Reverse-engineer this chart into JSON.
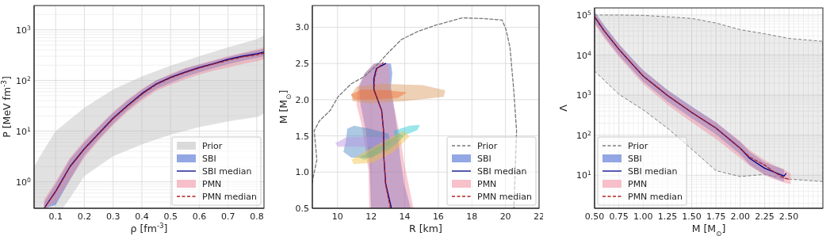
{
  "chart_data": [
    {
      "type": "line",
      "xlabel": "ρ [fm$^{-3}$]",
      "ylabel": "P [MeV fm$^{-3}$]",
      "log": "y",
      "grid": true,
      "legend": "bottom right",
      "xlim": [
        0.025,
        0.825
      ],
      "ylim": [
        0.3,
        3000
      ],
      "xticks": [
        0.1,
        0.2,
        0.3,
        0.4,
        0.5,
        0.6,
        0.7,
        0.8
      ],
      "yticks": [
        {
          "value": 0.3,
          "label": null
        },
        {
          "value": 0.4,
          "label": null
        },
        {
          "value": 0.5,
          "label": null
        },
        {
          "value": 0.6,
          "label": null
        },
        {
          "value": 0.7,
          "label": null
        },
        {
          "value": 0.8,
          "label": null
        },
        {
          "value": 0.9,
          "label": null
        },
        {
          "value": 1,
          "label": "10$^{0}$"
        },
        {
          "value": 2,
          "label": null
        },
        {
          "value": 3,
          "label": null
        },
        {
          "value": 4,
          "label": null
        },
        {
          "value": 5,
          "label": null
        },
        {
          "value": 6,
          "label": null
        },
        {
          "value": 7,
          "label": null
        },
        {
          "value": 8,
          "label": null
        },
        {
          "value": 9,
          "label": null
        },
        {
          "value": 10,
          "label": "10$^{1}$"
        },
        {
          "value": 20,
          "label": null
        },
        {
          "value": 30,
          "label": null
        },
        {
          "value": 40,
          "label": null
        },
        {
          "value": 50,
          "label": null
        },
        {
          "value": 60,
          "label": null
        },
        {
          "value": 70,
          "label": null
        },
        {
          "value": 80,
          "label": null
        },
        {
          "value": 90,
          "label": null
        },
        {
          "value": 100,
          "label": "10$^{2}$"
        },
        {
          "value": 200,
          "label": null
        },
        {
          "value": 300,
          "label": null
        },
        {
          "value": 400,
          "label": null
        },
        {
          "value": 500,
          "label": null
        },
        {
          "value": 600,
          "label": null
        },
        {
          "value": 700,
          "label": null
        },
        {
          "value": 800,
          "label": null
        },
        {
          "value": 900,
          "label": null
        },
        {
          "value": 1000,
          "label": "10$^{3}$"
        },
        {
          "value": 2000,
          "label": null
        },
        {
          "value": 3000,
          "label": null
        }
      ],
      "series": [
        {
          "name": "Prior",
          "type": "area",
          "color": "#bdbdbd",
          "x": [
            0.025,
            0.05,
            0.1,
            0.125,
            0.15,
            0.2,
            0.3,
            0.4,
            0.5,
            0.6,
            0.7,
            0.8,
            0.825,
            0.825,
            0.8,
            0.7,
            0.6,
            0.5,
            0.4,
            0.3,
            0.2,
            0.15,
            0.125,
            0.1,
            0.05,
            0.025
          ],
          "values": [
            2,
            3.5,
            10,
            13,
            17,
            29,
            66,
            120,
            195,
            300,
            450,
            650,
            780,
            22,
            19,
            15.5,
            12,
            8.5,
            5.5,
            3.2,
            1.3,
            0.48,
            0.3,
            0.3,
            0.3,
            0.3
          ]
        },
        {
          "name": "SBI",
          "type": "area",
          "color": "#3a5fcd",
          "x": [
            0.06,
            0.1,
            0.15,
            0.2,
            0.25,
            0.3,
            0.35,
            0.4,
            0.45,
            0.5,
            0.55,
            0.6,
            0.65,
            0.7,
            0.75,
            0.8,
            0.825,
            0.825,
            0.8,
            0.75,
            0.7,
            0.65,
            0.6,
            0.55,
            0.5,
            0.45,
            0.4,
            0.35,
            0.3,
            0.25,
            0.2,
            0.15,
            0.1,
            0.06
          ],
          "values": [
            0.4,
            0.9,
            2.8,
            6,
            12,
            23,
            40,
            65,
            100,
            130,
            170,
            205,
            245,
            290,
            340,
            390,
            420,
            300,
            280,
            245,
            210,
            175,
            145,
            118,
            90,
            68,
            44,
            26,
            14,
            7,
            3.3,
            1.1,
            0.35,
            0.3
          ]
        },
        {
          "name": "SBI median",
          "color": "#00008b",
          "line_style": "solid",
          "x": [
            0.06,
            0.1,
            0.15,
            0.2,
            0.25,
            0.3,
            0.35,
            0.4,
            0.45,
            0.5,
            0.55,
            0.6,
            0.65,
            0.7,
            0.75,
            0.8,
            0.825
          ],
          "values": [
            0.3,
            0.65,
            2.0,
            4.5,
            9,
            18,
            32,
            55,
            85,
            115,
            145,
            180,
            215,
            260,
            300,
            335,
            360
          ]
        },
        {
          "name": "PMN",
          "type": "area",
          "color": "#f08ca0",
          "x": [
            0.06,
            0.1,
            0.15,
            0.2,
            0.25,
            0.3,
            0.35,
            0.4,
            0.45,
            0.5,
            0.55,
            0.6,
            0.65,
            0.7,
            0.75,
            0.8,
            0.825,
            0.825,
            0.8,
            0.75,
            0.7,
            0.65,
            0.6,
            0.55,
            0.5,
            0.45,
            0.4,
            0.35,
            0.3,
            0.25,
            0.2,
            0.15,
            0.1,
            0.06
          ],
          "values": [
            0.45,
            1.0,
            3.0,
            6.5,
            12.5,
            24,
            42,
            68,
            100,
            135,
            175,
            210,
            250,
            300,
            350,
            410,
            450,
            260,
            240,
            210,
            180,
            155,
            130,
            105,
            82,
            62,
            40,
            24,
            13,
            6.5,
            3,
            1.1,
            0.4,
            0.3
          ]
        },
        {
          "name": "PMN median",
          "color": "#b22222",
          "line_style": "dashed",
          "x": [
            0.06,
            0.1,
            0.15,
            0.2,
            0.25,
            0.3,
            0.35,
            0.4,
            0.45,
            0.5,
            0.55,
            0.6,
            0.65,
            0.7,
            0.75,
            0.8,
            0.825
          ],
          "values": [
            0.3,
            0.63,
            1.95,
            4.4,
            8.8,
            17.5,
            31,
            53,
            83,
            112,
            142,
            176,
            210,
            250,
            290,
            320,
            345
          ]
        }
      ]
    },
    {
      "type": "line",
      "xlabel": "R [km]",
      "ylabel": "M [M$_{⊙}$]",
      "grid": true,
      "legend": "bottom right",
      "xlim": [
        8.5,
        22
      ],
      "ylim": [
        0.5,
        3.3
      ],
      "xticks": [
        10,
        12,
        14,
        16,
        18,
        20,
        22
      ],
      "yticks": [
        {
          "value": 0.5,
          "label": "0.5"
        },
        {
          "value": 1,
          "label": "1.0"
        },
        {
          "value": 1.5,
          "label": "1.5"
        },
        {
          "value": 2,
          "label": "2.0"
        },
        {
          "value": 2.5,
          "label": "2.5"
        },
        {
          "value": 3,
          "label": "3.0"
        }
      ],
      "series": [
        {
          "name": "Prior",
          "color": "#777777",
          "line_style": "dashed",
          "x": [
            8.5,
            8.54,
            8.77,
            8.61,
            8.93,
            9.56,
            10.03,
            10.82,
            11.6,
            12.4,
            13.02,
            13.8,
            14.76,
            15.86,
            17.43,
            18.69,
            19.8,
            20.03,
            20.27,
            20.5,
            20.66,
            20.58,
            20.5
          ],
          "values": [
            0.85,
            0.92,
            1.17,
            1.57,
            1.71,
            1.85,
            2.04,
            2.22,
            2.32,
            2.49,
            2.65,
            2.83,
            2.94,
            3.03,
            3.13,
            3.12,
            3.1,
            2.97,
            2.72,
            2.11,
            1.57,
            1.02,
            0.5
          ]
        },
        {
          "name": "SBI",
          "type": "area",
          "color": "#3a5fcd",
          "x": [
            12.0,
            11.92,
            11.69,
            11.37,
            11.29,
            11.6,
            12.16,
            12.4,
            13.18,
            13.26,
            13.18,
            13.34,
            13.57,
            13.73,
            13.97,
            14.36
          ],
          "values": [
            0.5,
            1.02,
            1.57,
            1.93,
            2.18,
            2.36,
            2.49,
            2.51,
            2.5,
            2.36,
            2.18,
            1.93,
            1.57,
            1.2,
            0.84,
            0.5
          ]
        },
        {
          "name": "SBI median",
          "color": "#00008b",
          "line_style": "solid",
          "x": [
            13.21,
            12.87,
            12.76,
            12.74,
            12.63,
            12.39,
            12.16,
            12.16,
            12.31,
            12.63,
            12.87
          ],
          "values": [
            0.5,
            0.84,
            1.2,
            1.57,
            1.85,
            2.0,
            2.14,
            2.29,
            2.43,
            2.47,
            2.5
          ]
        },
        {
          "name": "PMN",
          "type": "area",
          "color": "#f08ca0",
          "x": [
            11.89,
            11.84,
            11.45,
            11.13,
            11.21,
            11.69,
            12.16,
            13.02,
            13.1,
            13.1,
            13.42,
            13.73,
            13.97,
            14.28,
            14.52
          ],
          "values": [
            0.5,
            1.02,
            1.64,
            1.93,
            2.18,
            2.38,
            2.5,
            2.5,
            2.32,
            2.14,
            1.85,
            1.49,
            1.13,
            0.77,
            0.5
          ]
        },
        {
          "name": "PMN median",
          "color": "#b22222",
          "line_style": "dashed",
          "x": [
            13.15,
            12.85,
            12.76,
            12.74,
            12.62,
            12.38,
            12.18,
            12.2,
            12.35,
            12.6,
            12.71
          ],
          "values": [
            0.5,
            0.84,
            1.2,
            1.57,
            1.85,
            2.0,
            2.14,
            2.29,
            2.43,
            2.48,
            2.51
          ]
        },
        {
          "type": "area",
          "color": "#d9965a",
          "x": [
            10.82,
            11.13,
            12.71,
            15.07,
            16.41,
            16.33,
            13.97,
            11.92,
            10.9
          ],
          "values": [
            2.07,
            2.18,
            2.22,
            2.2,
            2.13,
            2.04,
            1.98,
            1.95,
            1.98
          ]
        },
        {
          "type": "area",
          "color": "#f06a30",
          "x": [
            10.79,
            11.45,
            13.02,
            14.13,
            13.57,
            11.92,
            11.0
          ],
          "values": [
            2.07,
            2.14,
            2.13,
            2.1,
            2.02,
            2.0,
            2.0
          ]
        },
        {
          "type": "area",
          "color": "#4a86c0",
          "x": [
            10.58,
            10.98,
            11.92,
            13.02,
            13.18,
            12.71,
            12.08,
            10.82,
            10.35,
            10.5
          ],
          "values": [
            1.6,
            1.64,
            1.6,
            1.53,
            1.4,
            1.31,
            1.2,
            1.2,
            1.28,
            1.43
          ]
        },
        {
          "type": "area",
          "color": "#b890e0",
          "x": [
            9.87,
            10.5,
            11.92,
            13.57,
            13.5,
            11.92,
            10.03
          ],
          "values": [
            1.4,
            1.48,
            1.49,
            1.46,
            1.37,
            1.35,
            1.35
          ]
        },
        {
          "type": "area",
          "color": "#20c8d0",
          "x": [
            13.34,
            14.28,
            14.91,
            14.76,
            13.81,
            13.42
          ],
          "values": [
            1.57,
            1.64,
            1.65,
            1.58,
            1.49,
            1.48
          ]
        },
        {
          "type": "area",
          "color": "#f0c040",
          "x": [
            10.82,
            11.6,
            13.02,
            13.97,
            14.28,
            13.34,
            12.08,
            10.98
          ],
          "values": [
            1.17,
            1.28,
            1.46,
            1.57,
            1.49,
            1.28,
            1.13,
            1.11
          ]
        },
        {
          "type": "area",
          "color": "#7ab87a",
          "x": [
            11.29,
            12.4,
            13.65,
            13.97,
            13.02,
            11.6
          ],
          "values": [
            1.2,
            1.35,
            1.53,
            1.49,
            1.3,
            1.17
          ]
        }
      ]
    },
    {
      "type": "line",
      "xlabel": "M [M$_{⊙}$]",
      "ylabel": "Λ",
      "log": "y",
      "grid": true,
      "legend": "bottom left",
      "xlim": [
        0.5,
        2.85
      ],
      "ylim": [
        1.5,
        150000
      ],
      "xticks": [
        {
          "value": 0.5,
          "label": "0.50"
        },
        {
          "value": 0.55,
          "label": null
        },
        {
          "value": 0.6,
          "label": null
        },
        {
          "value": 0.65,
          "label": null
        },
        {
          "value": 0.7,
          "label": null
        },
        {
          "value": 0.75,
          "label": "0.75"
        },
        {
          "value": 0.8,
          "label": null
        },
        {
          "value": 0.85,
          "label": null
        },
        {
          "value": 0.9,
          "label": null
        },
        {
          "value": 0.95,
          "label": null
        },
        {
          "value": 1,
          "label": "1.00"
        },
        {
          "value": 1.05,
          "label": null
        },
        {
          "value": 1.1,
          "label": null
        },
        {
          "value": 1.15,
          "label": null
        },
        {
          "value": 1.2,
          "label": null
        },
        {
          "value": 1.25,
          "label": "1.25"
        },
        {
          "value": 1.3,
          "label": null
        },
        {
          "value": 1.35,
          "label": null
        },
        {
          "value": 1.4,
          "label": null
        },
        {
          "value": 1.45,
          "label": null
        },
        {
          "value": 1.5,
          "label": "1.50"
        },
        {
          "value": 1.55,
          "label": null
        },
        {
          "value": 1.6,
          "label": null
        },
        {
          "value": 1.65,
          "label": null
        },
        {
          "value": 1.7,
          "label": null
        },
        {
          "value": 1.75,
          "label": "1.75"
        },
        {
          "value": 1.8,
          "label": null
        },
        {
          "value": 1.85,
          "label": null
        },
        {
          "value": 1.9,
          "label": null
        },
        {
          "value": 1.95,
          "label": null
        },
        {
          "value": 2,
          "label": "2.00"
        },
        {
          "value": 2.05,
          "label": null
        },
        {
          "value": 2.1,
          "label": null
        },
        {
          "value": 2.15,
          "label": null
        },
        {
          "value": 2.2,
          "label": null
        },
        {
          "value": 2.25,
          "label": "2.25"
        },
        {
          "value": 2.3,
          "label": null
        },
        {
          "value": 2.35,
          "label": null
        },
        {
          "value": 2.4,
          "label": null
        },
        {
          "value": 2.45,
          "label": null
        },
        {
          "value": 2.5,
          "label": "2.50"
        },
        {
          "value": 2.55,
          "label": null
        },
        {
          "value": 2.6,
          "label": null
        },
        {
          "value": 2.65,
          "label": null
        },
        {
          "value": 2.7,
          "label": null
        },
        {
          "value": 2.75,
          "label": null
        },
        {
          "value": 2.8,
          "label": null
        }
      ],
      "yticks": [
        {
          "value": 2,
          "label": null
        },
        {
          "value": 3,
          "label": null
        },
        {
          "value": 4,
          "label": null
        },
        {
          "value": 5,
          "label": null
        },
        {
          "value": 6,
          "label": null
        },
        {
          "value": 7,
          "label": null
        },
        {
          "value": 8,
          "label": null
        },
        {
          "value": 9,
          "label": null
        },
        {
          "value": 10,
          "label": "10$^{1}$"
        },
        {
          "value": 20,
          "label": null
        },
        {
          "value": 30,
          "label": null
        },
        {
          "value": 40,
          "label": null
        },
        {
          "value": 50,
          "label": null
        },
        {
          "value": 60,
          "label": null
        },
        {
          "value": 70,
          "label": null
        },
        {
          "value": 80,
          "label": null
        },
        {
          "value": 90,
          "label": null
        },
        {
          "value": 100,
          "label": "10$^{2}$"
        },
        {
          "value": 200,
          "label": null
        },
        {
          "value": 300,
          "label": null
        },
        {
          "value": 400,
          "label": null
        },
        {
          "value": 500,
          "label": null
        },
        {
          "value": 600,
          "label": null
        },
        {
          "value": 700,
          "label": null
        },
        {
          "value": 800,
          "label": null
        },
        {
          "value": 900,
          "label": null
        },
        {
          "value": 1000,
          "label": "10$^{3}$"
        },
        {
          "value": 2000,
          "label": null
        },
        {
          "value": 3000,
          "label": null
        },
        {
          "value": 4000,
          "label": null
        },
        {
          "value": 5000,
          "label": null
        },
        {
          "value": 6000,
          "label": null
        },
        {
          "value": 7000,
          "label": null
        },
        {
          "value": 8000,
          "label": null
        },
        {
          "value": 9000,
          "label": null
        },
        {
          "value": 10000,
          "label": "10$^{4}$"
        },
        {
          "value": 20000,
          "label": null
        },
        {
          "value": 30000,
          "label": null
        },
        {
          "value": 40000,
          "label": null
        },
        {
          "value": 50000,
          "label": null
        },
        {
          "value": 60000,
          "label": null
        },
        {
          "value": 70000,
          "label": null
        },
        {
          "value": 80000,
          "label": null
        },
        {
          "value": 90000,
          "label": null
        },
        {
          "value": 100000,
          "label": "10$^{5}$"
        }
      ],
      "series": [
        {
          "name": "Prior",
          "type": "area",
          "color": "#7f7f7f",
          "line_style": "dashed",
          "x": [
            0.5,
            0.75,
            1.0,
            1.25,
            1.5,
            1.75,
            2.0,
            2.25,
            2.5,
            2.85,
            2.85,
            2.5,
            2.25,
            2.0,
            1.75,
            1.5,
            1.25,
            1.0,
            0.75,
            0.5
          ],
          "values": [
            100000,
            100000,
            98000,
            90000,
            82000,
            63000,
            43000,
            34000,
            26000,
            22000,
            7,
            8,
            10.5,
            9.3,
            13,
            45,
            150,
            430,
            1050,
            4000
          ]
        },
        {
          "name": "SBI",
          "type": "area",
          "color": "#3a5fcd",
          "x": [
            0.5,
            0.6,
            0.75,
            0.9,
            1.0,
            1.25,
            1.5,
            1.75,
            2.0,
            2.1,
            2.25,
            2.35,
            2.45,
            2.45,
            2.35,
            2.25,
            2.1,
            2.0,
            1.75,
            1.5,
            1.25,
            1.0,
            0.9,
            0.75,
            0.6,
            0.5
          ],
          "values": [
            120000,
            55000,
            19000,
            7500,
            4200,
            1350,
            520,
            210,
            68,
            38,
            21,
            17,
            14,
            7,
            8.5,
            10.5,
            18,
            33,
            105,
            265,
            700,
            2200,
            4000,
            10000,
            29000,
            65000
          ]
        },
        {
          "name": "SBI median",
          "color": "#00008b",
          "line_style": "solid",
          "x": [
            0.5,
            0.6,
            0.75,
            0.9,
            1.0,
            1.25,
            1.5,
            1.75,
            2.0,
            2.1,
            2.25,
            2.35,
            2.45,
            2.47
          ],
          "values": [
            90000,
            40000,
            14000,
            5500,
            3000,
            980,
            370,
            150,
            47,
            26,
            15,
            12,
            9.5,
            11
          ]
        },
        {
          "name": "PMN",
          "type": "area",
          "color": "#f08ca0",
          "x": [
            0.5,
            0.6,
            0.75,
            0.9,
            1.0,
            1.25,
            1.5,
            1.75,
            2.0,
            2.1,
            2.25,
            2.35,
            2.45,
            2.52,
            2.52,
            2.45,
            2.35,
            2.25,
            2.1,
            2.0,
            1.75,
            1.5,
            1.25,
            1.0,
            0.9,
            0.75,
            0.6,
            0.5
          ],
          "values": [
            115000,
            52000,
            18500,
            7300,
            4100,
            1300,
            500,
            210,
            70,
            42,
            24,
            18,
            14,
            11,
            6,
            6.5,
            8,
            10,
            17,
            27,
            80,
            210,
            580,
            1900,
            3500,
            9000,
            26000,
            60000
          ]
        },
        {
          "name": "PMN median",
          "color": "#b22222",
          "line_style": "dashed",
          "x": [
            0.5,
            0.6,
            0.75,
            0.9,
            1.0,
            1.25,
            1.5,
            1.75,
            2.0,
            2.1,
            2.25,
            2.35,
            2.45,
            2.5
          ],
          "values": [
            90000,
            40000,
            14000,
            5500,
            3000,
            980,
            370,
            150,
            47,
            28,
            18,
            12,
            8.5,
            8
          ]
        }
      ]
    }
  ]
}
